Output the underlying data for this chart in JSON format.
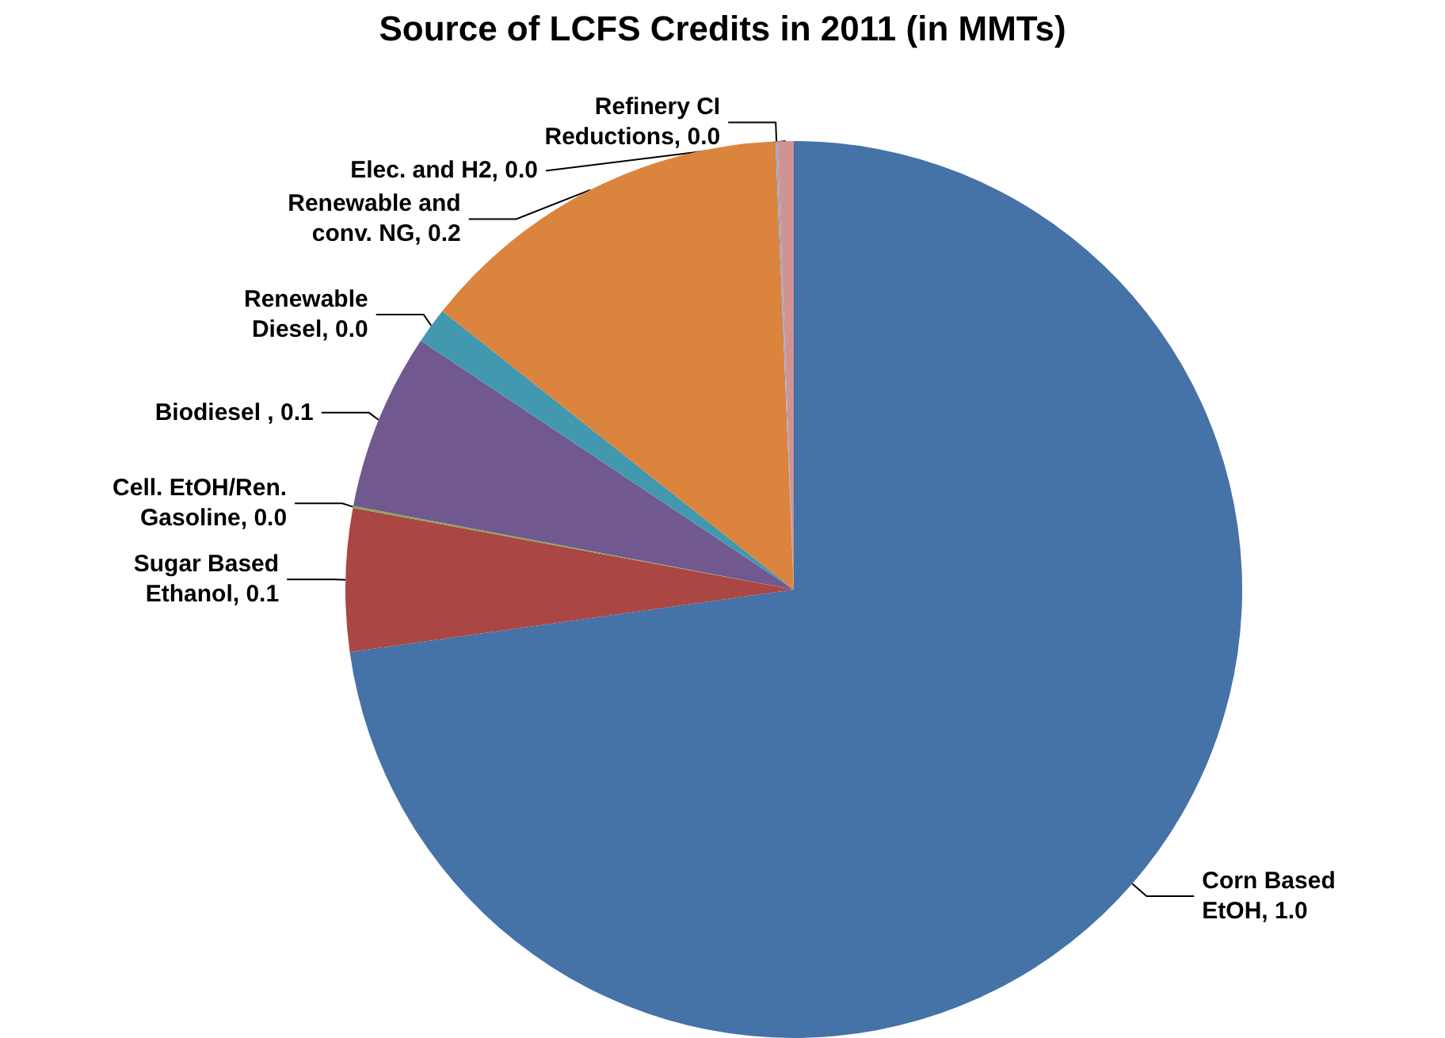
{
  "chart_data": {
    "type": "pie",
    "title": "Source of LCFS Credits in 2011 (in MMTs)",
    "categories": [
      "Corn Based EtOH",
      "Sugar Based Ethanol",
      "Cell. EtOH/Ren. Gasoline",
      "Biodiesel ",
      "Renewable Diesel",
      "Renewable and conv. NG",
      "Refinery CI Reductions",
      "Elec. and H2"
    ],
    "values": [
      1.005,
      0.071,
      0.001,
      0.088,
      0.018,
      0.189,
      0.001,
      0.008
    ],
    "value_labels": [
      "1.0",
      "0.1",
      "0.0",
      "0.1",
      "0.0",
      "0.2",
      "0.0",
      "0.0"
    ],
    "colors": [
      "#4572a7",
      "#aa4643",
      "#89a54e",
      "#71588f",
      "#4198af",
      "#db843d",
      "#93a9cf",
      "#d19392"
    ],
    "legend": false
  }
}
